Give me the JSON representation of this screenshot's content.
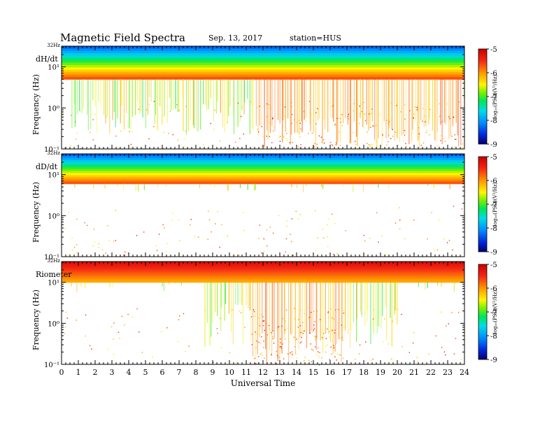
{
  "title": "Magnetic  Field  Spectra",
  "date": "Sep. 13, 2017",
  "station": "station=HUS",
  "chart_data": [
    {
      "type": "heatmap",
      "panel_label": "dH/dt",
      "ylabel": "Frequency  (Hz)",
      "top_tick_label": "32Hz",
      "y_ticks": [
        "10⁻¹",
        "10⁰",
        "10¹"
      ],
      "y_tick_values": [
        0.1,
        1,
        10
      ],
      "ylim": [
        0.1,
        32
      ],
      "yscale": "log",
      "x_range_hours": [
        0,
        24
      ],
      "colorbar_label": "log₁₀(PSD)(V²/Hz)",
      "colorbar_ticks": [
        "-5",
        "-6",
        "-7",
        "-8",
        "-9"
      ],
      "colorbar_range": [
        -9,
        -5
      ],
      "dense_band_upper_hz": 32,
      "dense_band_lower_hz": 5,
      "activity_ranges_hours": [
        [
          0.5,
          24
        ]
      ],
      "strong_activity_ranges_hours": [
        [
          11.5,
          23.9
        ]
      ]
    },
    {
      "type": "heatmap",
      "panel_label": "dD/dt",
      "ylabel": "Frequency  (Hz)",
      "top_tick_label": "32Hz",
      "y_ticks": [
        "10⁻¹",
        "10⁰",
        "10¹"
      ],
      "y_tick_values": [
        0.1,
        1,
        10
      ],
      "ylim": [
        0.1,
        32
      ],
      "yscale": "log",
      "x_range_hours": [
        0,
        24
      ],
      "colorbar_label": "log₁₀(PSD)(V²/Hz)",
      "colorbar_ticks": [
        "-5",
        "-6",
        "-7",
        "-8",
        "-9"
      ],
      "colorbar_range": [
        -9,
        -5
      ],
      "dense_band_upper_hz": 32,
      "dense_band_lower_hz": 6,
      "activity_ranges_hours": [],
      "strong_activity_ranges_hours": []
    },
    {
      "type": "heatmap",
      "panel_label": "Riometer",
      "ylabel": "Frequency  (Hz)",
      "top_tick_label": "32Hz",
      "y_ticks": [
        "10⁻¹",
        "10⁰",
        "10¹"
      ],
      "y_tick_values": [
        0.1,
        1,
        10
      ],
      "ylim": [
        0.1,
        32
      ],
      "yscale": "log",
      "x_range_hours": [
        0,
        24
      ],
      "colorbar_label": "log₁₀(PSD)(V²/Hz)",
      "colorbar_ticks": [
        "-5",
        "-6",
        "-7",
        "-8",
        "-9"
      ],
      "colorbar_range": [
        -9,
        -5
      ],
      "dense_band_upper_hz": 32,
      "dense_band_lower_hz": 10,
      "activity_ranges_hours": [
        [
          8.5,
          20
        ]
      ],
      "strong_activity_ranges_hours": [
        [
          11.3,
          16.8
        ]
      ]
    }
  ],
  "x_axis": {
    "label": "Universal Time",
    "ticks": [
      "0",
      "1",
      "2",
      "3",
      "4",
      "5",
      "6",
      "7",
      "8",
      "9",
      "10",
      "11",
      "12",
      "13",
      "14",
      "15",
      "16",
      "17",
      "18",
      "19",
      "20",
      "21",
      "22",
      "23",
      "24"
    ]
  }
}
